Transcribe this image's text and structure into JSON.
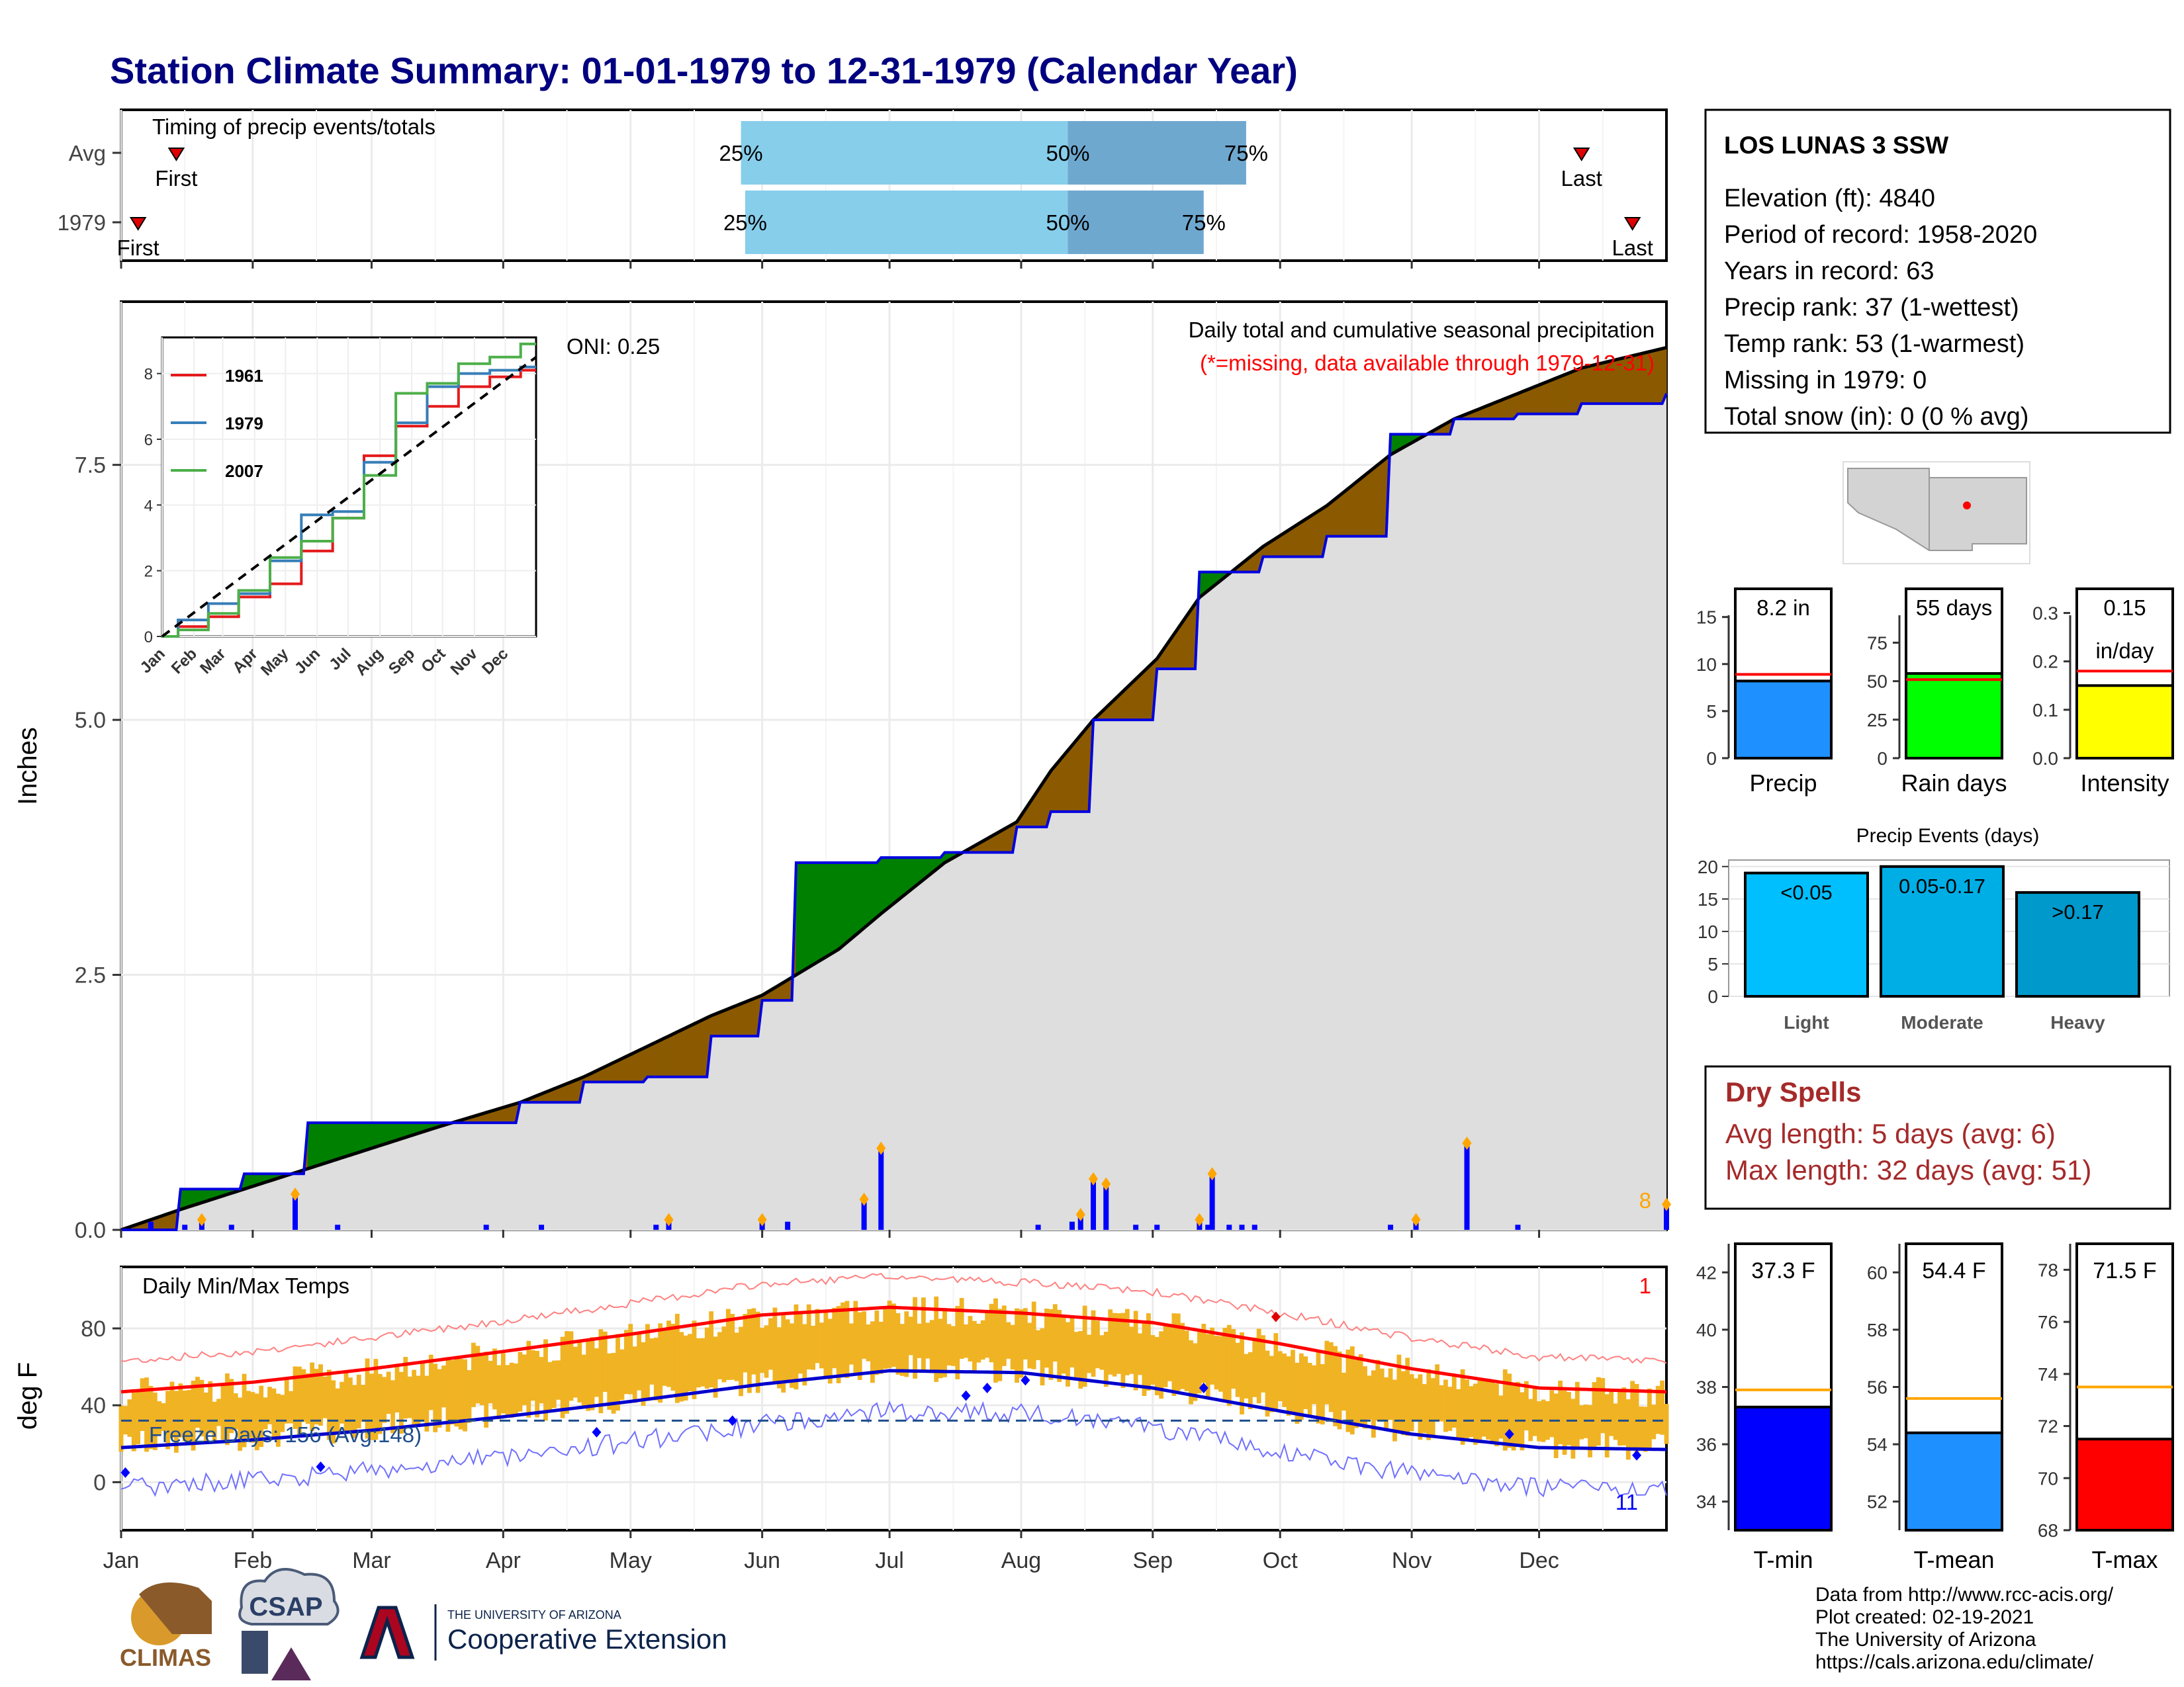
{
  "title": "Station Climate Summary: 01-01-1979 to 12-31-1979 (Calendar Year)",
  "months": [
    "Jan",
    "Feb",
    "Mar",
    "Apr",
    "May",
    "Jun",
    "Jul",
    "Aug",
    "Sep",
    "Oct",
    "Nov",
    "Dec"
  ],
  "timing": {
    "title": "Timing of precip events/totals",
    "rows": [
      {
        "label": "Avg",
        "first_day": 14,
        "p25_day": 147,
        "p50_day": 224,
        "p75_day": 266,
        "last_day": 345
      },
      {
        "label": "1979",
        "first_day": 5,
        "p25_day": 148,
        "p50_day": 224,
        "p75_day": 256,
        "last_day": 357
      }
    ],
    "first_label": "First",
    "last_label": "Last",
    "p25_label": "25%",
    "p50_label": "50%",
    "p75_label": "75%"
  },
  "precip_chart": {
    "ylabel": "Inches",
    "yticks": [
      "0.0",
      "2.5",
      "5.0",
      "7.5"
    ],
    "caption": "Daily total and cumulative seasonal precipitation",
    "subcaption": "(*=missing, data available through 1979-12-31)",
    "oni_label": "ONI: 0.25",
    "count_label": "8"
  },
  "inset": {
    "series": [
      {
        "name": "1961",
        "color": "#e41a1c"
      },
      {
        "name": "1979",
        "color": "#377eb8"
      },
      {
        "name": "2007",
        "color": "#4daf4a"
      }
    ],
    "yticks": [
      "0",
      "2",
      "4",
      "6",
      "8"
    ]
  },
  "temp_chart": {
    "ylabel": "deg F",
    "title": "Daily Min/Max Temps",
    "yticks": [
      "0",
      "40",
      "80"
    ],
    "freeze_label": "Freeze Days: 156 (Avg:148)",
    "record_high_count": "1",
    "record_low_count": "11"
  },
  "station": {
    "name": "LOS LUNAS 3 SSW",
    "lines": [
      "Elevation (ft): 4840",
      "Period of record: 1958-2020",
      "Years in record: 63",
      "Precip rank: 37 (1-wettest)",
      "Temp rank: 53 (1-warmest)",
      "Missing in 1979: 0",
      "Total snow (in): 0 (0 % avg)"
    ]
  },
  "summary_bars": [
    {
      "label": "Precip",
      "value": 8.2,
      "avg": 8.9,
      "ymax": 18,
      "yticks": [
        "0",
        "5",
        "10",
        "15"
      ],
      "tickvals": [
        0,
        5,
        10,
        15
      ],
      "text": "8.2 in",
      "text2": "",
      "color": "#1e90ff"
    },
    {
      "label": "Rain days",
      "value": 55,
      "avg": 51,
      "ymax": 110,
      "yticks": [
        "0",
        "25",
        "50",
        "75"
      ],
      "tickvals": [
        0,
        25,
        50,
        75
      ],
      "text": "55 days",
      "text2": "",
      "color": "#00ff00"
    },
    {
      "label": "Intensity",
      "value": 0.15,
      "avg": 0.18,
      "ymax": 0.35,
      "yticks": [
        "0.0",
        "0.1",
        "0.2",
        "0.3"
      ],
      "tickvals": [
        0,
        0.1,
        0.2,
        0.3
      ],
      "text": "0.15",
      "text2": "in/day",
      "color": "#ffff00"
    }
  ],
  "events": {
    "title": "Precip Events (days)",
    "yticks": [
      "0",
      "5",
      "10",
      "15",
      "20"
    ],
    "bars": [
      {
        "label": "Light",
        "value": 19,
        "text": "<0.05",
        "color": "#00bfff"
      },
      {
        "label": "Moderate",
        "value": 20,
        "text": "0.05-0.17",
        "color": "#00aee6"
      },
      {
        "label": "Heavy",
        "value": 16,
        "text": ">0.17",
        "color": "#0099cc"
      }
    ]
  },
  "dry_spells": {
    "title": "Dry Spells",
    "avg_line": "Avg length: 5 days (avg: 6)",
    "max_line": "Max length: 32 days (avg: 51)"
  },
  "temp_bars": [
    {
      "label": "T-min",
      "value": 37.3,
      "avg": 37.9,
      "ymin": 33,
      "ymax": 43,
      "yticks": [
        "34",
        "36",
        "38",
        "40",
        "42"
      ],
      "tickvals": [
        34,
        36,
        38,
        40,
        42
      ],
      "text": "37.3 F",
      "color": "#0000ff"
    },
    {
      "label": "T-mean",
      "value": 54.4,
      "avg": 55.6,
      "ymin": 51,
      "ymax": 61,
      "yticks": [
        "52",
        "54",
        "56",
        "58",
        "60"
      ],
      "tickvals": [
        52,
        54,
        56,
        58,
        60
      ],
      "text": "54.4 F",
      "color": "#1e90ff"
    },
    {
      "label": "T-max",
      "value": 71.5,
      "avg": 73.5,
      "ymin": 68,
      "ymax": 79,
      "yticks": [
        "68",
        "70",
        "72",
        "74",
        "76",
        "78"
      ],
      "tickvals": [
        68,
        70,
        72,
        74,
        76,
        78
      ],
      "text": "71.5 F",
      "color": "#ff0000"
    }
  ],
  "footer": {
    "lines": [
      "Data from http://www.rcc-acis.org/",
      "Plot created: 02-19-2021",
      "The University of Arizona",
      "https://cals.arizona.edu/climate/"
    ],
    "climas": "CLIMAS",
    "csap": "CSAP",
    "ua_small": "THE UNIVERSITY OF ARIZONA",
    "ua_big": "Cooperative Extension"
  },
  "chart_data": [
    {
      "type": "bar",
      "title": "Timing of precip events/totals",
      "categories": [
        "Avg",
        "1979"
      ],
      "series": [
        {
          "name": "First",
          "values": [
            14,
            5
          ]
        },
        {
          "name": "25%",
          "values": [
            147,
            148
          ]
        },
        {
          "name": "50%",
          "values": [
            224,
            224
          ]
        },
        {
          "name": "75%",
          "values": [
            266,
            256
          ]
        },
        {
          "name": "Last",
          "values": [
            345,
            357
          ]
        }
      ]
    },
    {
      "type": "area",
      "xlabel": "",
      "ylabel": "Inches",
      "ylim": [
        0,
        9.1
      ],
      "x": [
        1,
        15,
        30,
        45,
        60,
        75,
        95,
        110,
        125,
        140,
        152,
        160,
        170,
        180,
        195,
        212,
        220,
        230,
        245,
        255,
        270,
        285,
        300,
        315,
        330,
        345,
        365
      ],
      "series": [
        {
          "name": "observed cumulative",
          "values": [
            0,
            0.4,
            0.55,
            1.05,
            1.05,
            1.05,
            1.25,
            1.45,
            1.5,
            1.9,
            2.25,
            3.6,
            3.6,
            3.65,
            3.7,
            3.95,
            4.1,
            5.0,
            5.5,
            6.45,
            6.6,
            6.8,
            7.8,
            7.95,
            8.0,
            8.1,
            8.2
          ]
        },
        {
          "name": "average cumulative",
          "values": [
            0,
            0.2,
            0.4,
            0.6,
            0.8,
            1.0,
            1.25,
            1.5,
            1.8,
            2.1,
            2.3,
            2.5,
            2.75,
            3.1,
            3.6,
            4.0,
            4.5,
            5.0,
            5.6,
            6.2,
            6.7,
            7.1,
            7.6,
            7.95,
            8.2,
            8.45,
            8.65
          ]
        }
      ],
      "daily_bars_x": [
        8,
        16,
        20,
        27,
        42,
        52,
        87,
        100,
        127,
        130,
        152,
        158,
        176,
        180,
        217,
        225,
        227,
        230,
        233,
        240,
        245,
        255,
        257,
        258,
        262,
        265,
        268,
        300,
        306,
        318,
        330,
        365
      ],
      "daily_bars_y": [
        0.08,
        0.05,
        0.1,
        0.05,
        0.35,
        0.05,
        0.05,
        0.05,
        0.05,
        0.1,
        0.1,
        0.08,
        0.3,
        0.8,
        0.05,
        0.08,
        0.15,
        0.5,
        0.45,
        0.05,
        0.05,
        0.1,
        0.05,
        0.55,
        0.05,
        0.05,
        0.05,
        0.05,
        0.1,
        0.85,
        0.05,
        0.25
      ]
    },
    {
      "type": "line",
      "title": "Daily Min/Max Temps",
      "ylabel": "deg F",
      "ylim": [
        -25,
        112
      ],
      "x": [
        1,
        32,
        60,
        91,
        121,
        152,
        182,
        213,
        244,
        274,
        305,
        335,
        365
      ],
      "series": [
        {
          "name": "avg max",
          "values": [
            47,
            52,
            59,
            68,
            77,
            87,
            91,
            88,
            83,
            72,
            59,
            49,
            47
          ]
        },
        {
          "name": "avg min",
          "values": [
            18,
            22,
            27,
            34,
            42,
            51,
            58,
            57,
            49,
            37,
            25,
            18,
            17
          ]
        }
      ],
      "freeze_threshold": 32
    },
    {
      "type": "bar",
      "categories": [
        "Precip",
        "Rain days",
        "Intensity"
      ],
      "values": [
        8.2,
        55,
        0.15
      ],
      "averages": [
        8.9,
        51,
        0.18
      ]
    },
    {
      "type": "bar",
      "title": "Precip Events (days)",
      "categories": [
        "Light",
        "Moderate",
        "Heavy"
      ],
      "values": [
        19,
        20,
        16
      ]
    },
    {
      "type": "bar",
      "categories": [
        "T-min",
        "T-mean",
        "T-max"
      ],
      "values": [
        37.3,
        54.4,
        71.5
      ],
      "averages": [
        37.9,
        55.6,
        73.5
      ]
    },
    {
      "type": "line",
      "title": "inset",
      "x": [
        1,
        32,
        60,
        91,
        121,
        152,
        182,
        213,
        244,
        274,
        305,
        335,
        365
      ],
      "series": [
        {
          "name": "1961",
          "values": [
            0,
            0.3,
            0.6,
            1.2,
            1.6,
            2.6,
            3.6,
            5.5,
            6.4,
            7.0,
            7.6,
            7.9,
            8.1
          ]
        },
        {
          "name": "1979",
          "values": [
            0,
            0.5,
            1.0,
            1.3,
            2.3,
            3.7,
            3.8,
            5.3,
            6.5,
            7.6,
            8.0,
            8.1,
            8.2
          ]
        },
        {
          "name": "2007",
          "values": [
            0,
            0.2,
            0.7,
            1.4,
            2.4,
            2.9,
            3.6,
            4.9,
            7.4,
            7.7,
            8.3,
            8.5,
            8.9
          ]
        }
      ]
    }
  ]
}
